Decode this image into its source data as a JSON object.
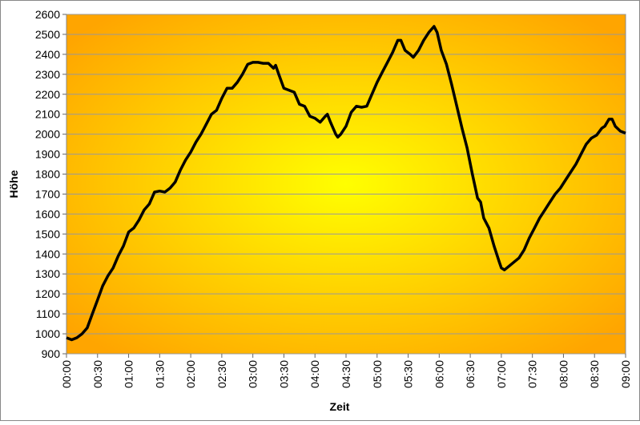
{
  "chart_data": {
    "type": "line",
    "xlabel": "Zeit",
    "ylabel": "Höhe",
    "x": [
      0,
      5,
      10,
      15,
      20,
      25,
      30,
      35,
      40,
      45,
      50,
      55,
      60,
      65,
      70,
      75,
      80,
      85,
      90,
      95,
      100,
      105,
      110,
      115,
      120,
      125,
      130,
      135,
      140,
      145,
      150,
      155,
      160,
      165,
      170,
      175,
      180,
      185,
      190,
      195,
      200,
      202,
      205,
      210,
      215,
      220,
      225,
      230,
      235,
      240,
      245,
      250,
      252,
      255,
      260,
      262,
      265,
      270,
      275,
      280,
      285,
      290,
      295,
      300,
      305,
      310,
      315,
      320,
      323,
      327,
      332,
      335,
      340,
      345,
      350,
      355,
      358,
      362,
      367,
      372,
      377,
      382,
      387,
      392,
      397,
      400,
      403,
      408,
      413,
      418,
      420,
      423,
      430,
      437,
      442,
      447,
      452,
      457,
      462,
      467,
      472,
      477,
      482,
      487,
      492,
      497,
      502,
      507,
      512,
      517,
      520,
      524,
      527,
      530,
      535,
      540
    ],
    "series": [
      {
        "name": "Höhe",
        "color": "#000000",
        "values": [
          980,
          970,
          980,
          1000,
          1030,
          1100,
          1170,
          1240,
          1290,
          1330,
          1390,
          1440,
          1510,
          1530,
          1570,
          1620,
          1650,
          1710,
          1715,
          1710,
          1730,
          1760,
          1820,
          1870,
          1910,
          1960,
          2000,
          2050,
          2100,
          2120,
          2180,
          2230,
          2230,
          2260,
          2300,
          2350,
          2360,
          2360,
          2355,
          2355,
          2330,
          2345,
          2300,
          2230,
          2220,
          2210,
          2150,
          2140,
          2090,
          2080,
          2060,
          2090,
          2100,
          2060,
          2000,
          1985,
          2000,
          2040,
          2110,
          2140,
          2135,
          2140,
          2200,
          2260,
          2310,
          2360,
          2410,
          2470,
          2470,
          2420,
          2400,
          2385,
          2420,
          2470,
          2510,
          2540,
          2510,
          2420,
          2350,
          2250,
          2140,
          2030,
          1930,
          1800,
          1680,
          1660,
          1580,
          1530,
          1440,
          1360,
          1330,
          1320,
          1350,
          1380,
          1420,
          1480,
          1530,
          1580,
          1620,
          1660,
          1700,
          1730,
          1770,
          1810,
          1850,
          1900,
          1950,
          1980,
          1995,
          2030,
          2040,
          2075,
          2075,
          2040,
          2015,
          2005
        ]
      }
    ],
    "xlim": [
      0,
      540
    ],
    "xticks": [
      {
        "value": 0,
        "label": "00:00"
      },
      {
        "value": 30,
        "label": "00:30"
      },
      {
        "value": 60,
        "label": "01:00"
      },
      {
        "value": 90,
        "label": "01:30"
      },
      {
        "value": 120,
        "label": "02:00"
      },
      {
        "value": 150,
        "label": "02:30"
      },
      {
        "value": 180,
        "label": "03:00"
      },
      {
        "value": 210,
        "label": "03:30"
      },
      {
        "value": 240,
        "label": "04:00"
      },
      {
        "value": 270,
        "label": "04:30"
      },
      {
        "value": 300,
        "label": "05:00"
      },
      {
        "value": 330,
        "label": "05:30"
      },
      {
        "value": 360,
        "label": "06:00"
      },
      {
        "value": 390,
        "label": "06:30"
      },
      {
        "value": 420,
        "label": "07:00"
      },
      {
        "value": 450,
        "label": "07:30"
      },
      {
        "value": 480,
        "label": "08:00"
      },
      {
        "value": 510,
        "label": "08:30"
      },
      {
        "value": 540,
        "label": "09:00"
      }
    ],
    "ylim": [
      900,
      2600
    ],
    "yticks": [
      900,
      1000,
      1100,
      1200,
      1300,
      1400,
      1500,
      1600,
      1700,
      1800,
      1900,
      2000,
      2100,
      2200,
      2300,
      2400,
      2500,
      2600
    ],
    "grid": true
  }
}
